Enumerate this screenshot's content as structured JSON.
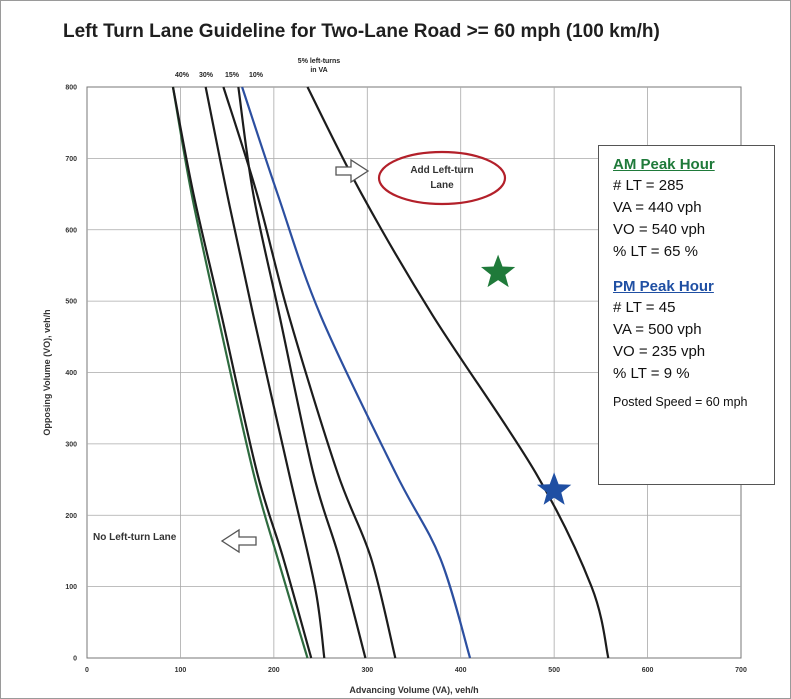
{
  "chart_data": {
    "type": "line",
    "title": "Left Turn Lane Guideline for Two-Lane Road >= 60 mph (100 km/h)",
    "xlabel": "Advancing Volume (VA), veh/h",
    "ylabel": "Opposing Volume (VO), veh/h",
    "xlim": [
      0,
      700
    ],
    "ylim": [
      0,
      800
    ],
    "xticks": [
      "0",
      "100",
      "200",
      "300",
      "400",
      "500",
      "600",
      "700"
    ],
    "yticks": [
      "0",
      "100",
      "200",
      "300",
      "400",
      "500",
      "600",
      "700",
      "800"
    ],
    "grid": true,
    "series": [
      {
        "name": "40%",
        "color": "#2e6b3f",
        "x": [
          92,
          112,
          140,
          178,
          204,
          236
        ],
        "y": [
          800,
          650,
          480,
          260,
          140,
          0
        ]
      },
      {
        "name": "40%",
        "color": "#1c1c1c",
        "x": [
          92,
          114,
          144,
          182,
          210,
          240
        ],
        "y": [
          800,
          650,
          480,
          260,
          140,
          0
        ]
      },
      {
        "name": "30%",
        "color": "#1c1c1c",
        "x": [
          127,
          150,
          178,
          216,
          244,
          254
        ],
        "y": [
          800,
          650,
          480,
          260,
          100,
          0
        ]
      },
      {
        "name": "15%",
        "color": "#1c1c1c",
        "x": [
          146,
          182,
          216,
          268,
          304,
          330
        ],
        "y": [
          800,
          650,
          480,
          260,
          140,
          0
        ]
      },
      {
        "name": "10%",
        "color": "#1c1c1c",
        "x": [
          162,
          178,
          206,
          242,
          270,
          298
        ],
        "y": [
          800,
          650,
          480,
          260,
          140,
          0
        ]
      },
      {
        "name": "10%",
        "color": "#2c4fa0",
        "x": [
          166,
          204,
          250,
          330,
          378,
          410
        ],
        "y": [
          800,
          650,
          480,
          260,
          140,
          0
        ]
      },
      {
        "name": "5% left-turns in VA",
        "color": "#1c1c1c",
        "x": [
          236,
          294,
          370,
          480,
          540,
          558
        ],
        "y": [
          800,
          650,
          480,
          260,
          100,
          0
        ]
      }
    ],
    "curve_labels": [
      "40%",
      "30%",
      "15%",
      "10%"
    ],
    "top_label_lines": [
      "5% left-turns",
      "in VA"
    ],
    "markers": [
      {
        "label": "AM Peak Hour",
        "x": 440,
        "y": 540,
        "color": "#1f7a3a",
        "shape": "star"
      },
      {
        "label": "PM Peak Hour",
        "x": 500,
        "y": 235,
        "color": "#1f4fa3",
        "shape": "star"
      }
    ],
    "annotations": {
      "add_lane_lines": [
        "Add Left-turn",
        "Lane"
      ],
      "no_lane": "No Left-turn Lane"
    }
  },
  "info": {
    "am_header": "AM Peak Hour",
    "am_lines": [
      "# LT = 285",
      "VA = 440 vph",
      "VO = 540 vph",
      "% LT = 65 %"
    ],
    "pm_header": "PM Peak Hour",
    "pm_lines": [
      "# LT = 45",
      "VA = 500 vph",
      "VO = 235 vph",
      "% LT = 9 %"
    ],
    "speed": "Posted Speed = 60 mph"
  }
}
